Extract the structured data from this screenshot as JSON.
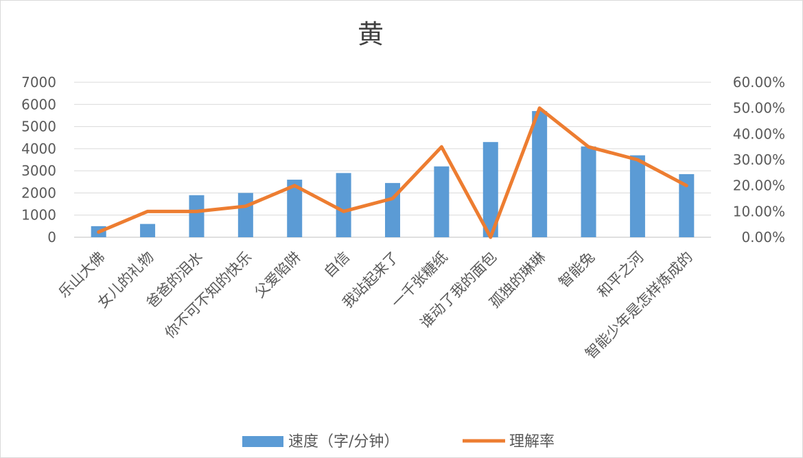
{
  "chart_data": {
    "type": "bar",
    "title": "黄",
    "categories": [
      "乐山大佛",
      "女儿的礼物",
      "爸爸的泪水",
      "你不可不知的快乐",
      "父爱陷阱",
      "自信",
      "我站起来了",
      "一千张糖纸",
      "谁动了我的面包",
      "孤独的琳琳",
      "智能兔",
      "和平之河",
      "智能少年是怎样炼成的"
    ],
    "series": [
      {
        "name": "速度（字/分钟）",
        "type": "bar",
        "axis": "left",
        "color": "#5b9bd5",
        "values": [
          500,
          600,
          1900,
          2000,
          2600,
          2900,
          2450,
          3200,
          4300,
          5700,
          4100,
          3700,
          2850
        ]
      },
      {
        "name": "理解率",
        "type": "line",
        "axis": "right",
        "color": "#ed7d31",
        "values": [
          0.02,
          0.1,
          0.1,
          0.12,
          0.2,
          0.1,
          0.15,
          0.35,
          0.0,
          0.5,
          0.35,
          0.3,
          0.2
        ]
      }
    ],
    "y_left": {
      "min": 0,
      "max": 7000,
      "ticks": [
        "0",
        "1000",
        "2000",
        "3000",
        "4000",
        "5000",
        "6000",
        "7000"
      ]
    },
    "y_right": {
      "min": 0,
      "max": 0.6,
      "ticks": [
        "0.00%",
        "10.00%",
        "20.00%",
        "30.00%",
        "40.00%",
        "50.00%",
        "60.00%"
      ]
    },
    "grid": true,
    "legend_position": "bottom"
  }
}
